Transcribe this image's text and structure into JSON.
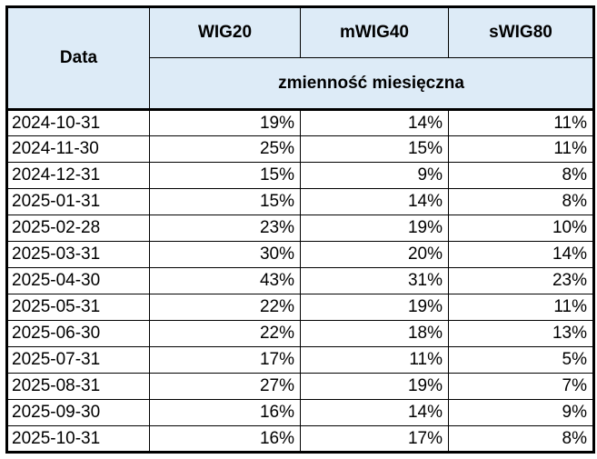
{
  "table": {
    "date_header": "Data",
    "columns": [
      "WIG20",
      "mWIG40",
      "sWIG80"
    ],
    "subheader": "zmienność miesięczna",
    "rows": [
      {
        "date": "2024-10-31",
        "values": [
          "19%",
          "14%",
          "11%"
        ]
      },
      {
        "date": "2024-11-30",
        "values": [
          "25%",
          "15%",
          "11%"
        ]
      },
      {
        "date": "2024-12-31",
        "values": [
          "15%",
          "9%",
          "8%"
        ]
      },
      {
        "date": "2025-01-31",
        "values": [
          "15%",
          "14%",
          "8%"
        ]
      },
      {
        "date": "2025-02-28",
        "values": [
          "23%",
          "19%",
          "10%"
        ]
      },
      {
        "date": "2025-03-31",
        "values": [
          "30%",
          "20%",
          "14%"
        ]
      },
      {
        "date": "2025-04-30",
        "values": [
          "43%",
          "31%",
          "23%"
        ]
      },
      {
        "date": "2025-05-31",
        "values": [
          "22%",
          "19%",
          "11%"
        ]
      },
      {
        "date": "2025-06-30",
        "values": [
          "22%",
          "18%",
          "13%"
        ]
      },
      {
        "date": "2025-07-31",
        "values": [
          "17%",
          "11%",
          "5%"
        ]
      },
      {
        "date": "2025-08-31",
        "values": [
          "27%",
          "19%",
          "7%"
        ]
      },
      {
        "date": "2025-09-30",
        "values": [
          "16%",
          "14%",
          "9%"
        ]
      },
      {
        "date": "2025-10-31",
        "values": [
          "16%",
          "17%",
          "8%"
        ]
      }
    ]
  },
  "chart_data": {
    "type": "table",
    "title": "zmienność miesięczna",
    "categories": [
      "2024-10-31",
      "2024-11-30",
      "2024-12-31",
      "2025-01-31",
      "2025-02-28",
      "2025-03-31",
      "2025-04-30",
      "2025-05-31",
      "2025-06-30",
      "2025-07-31",
      "2025-08-31",
      "2025-09-30",
      "2025-10-31"
    ],
    "series": [
      {
        "name": "WIG20",
        "values": [
          19,
          25,
          15,
          15,
          23,
          30,
          43,
          22,
          22,
          17,
          27,
          16,
          16
        ]
      },
      {
        "name": "mWIG40",
        "values": [
          14,
          15,
          9,
          14,
          19,
          20,
          31,
          19,
          18,
          11,
          19,
          14,
          17
        ]
      },
      {
        "name": "sWIG80",
        "values": [
          11,
          11,
          8,
          8,
          10,
          14,
          23,
          11,
          13,
          5,
          7,
          9,
          8
        ]
      }
    ],
    "unit": "%",
    "xlabel": "Data",
    "ylabel": "zmienność miesięczna"
  },
  "colors": {
    "header_bg": "#ddebf7",
    "border": "#000000",
    "text": "#000000",
    "page_bg": "#ffffff"
  }
}
